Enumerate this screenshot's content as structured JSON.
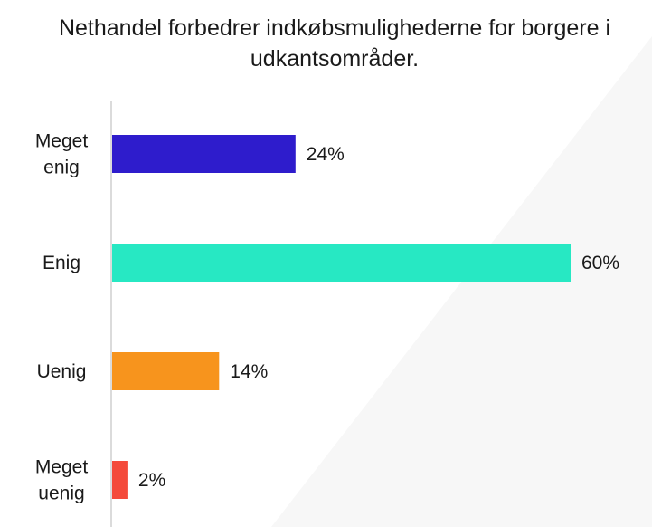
{
  "chart_data": {
    "type": "bar",
    "orientation": "horizontal",
    "title": "Nethandel forbedrer indkøbsmulighederne for borgere i udkantsområder.",
    "categories": [
      [
        "Meget",
        "enig"
      ],
      [
        "Enig"
      ],
      [
        "Uenig"
      ],
      [
        "Meget",
        "uenig"
      ]
    ],
    "values": [
      24,
      60,
      14,
      2
    ],
    "value_labels": [
      "24%",
      "60%",
      "14%",
      "2%"
    ],
    "colors": [
      "#2e1ccc",
      "#27e8c3",
      "#f7941d",
      "#f44a3b"
    ],
    "xlim": [
      0,
      60
    ],
    "grid": false,
    "legend": "none"
  }
}
